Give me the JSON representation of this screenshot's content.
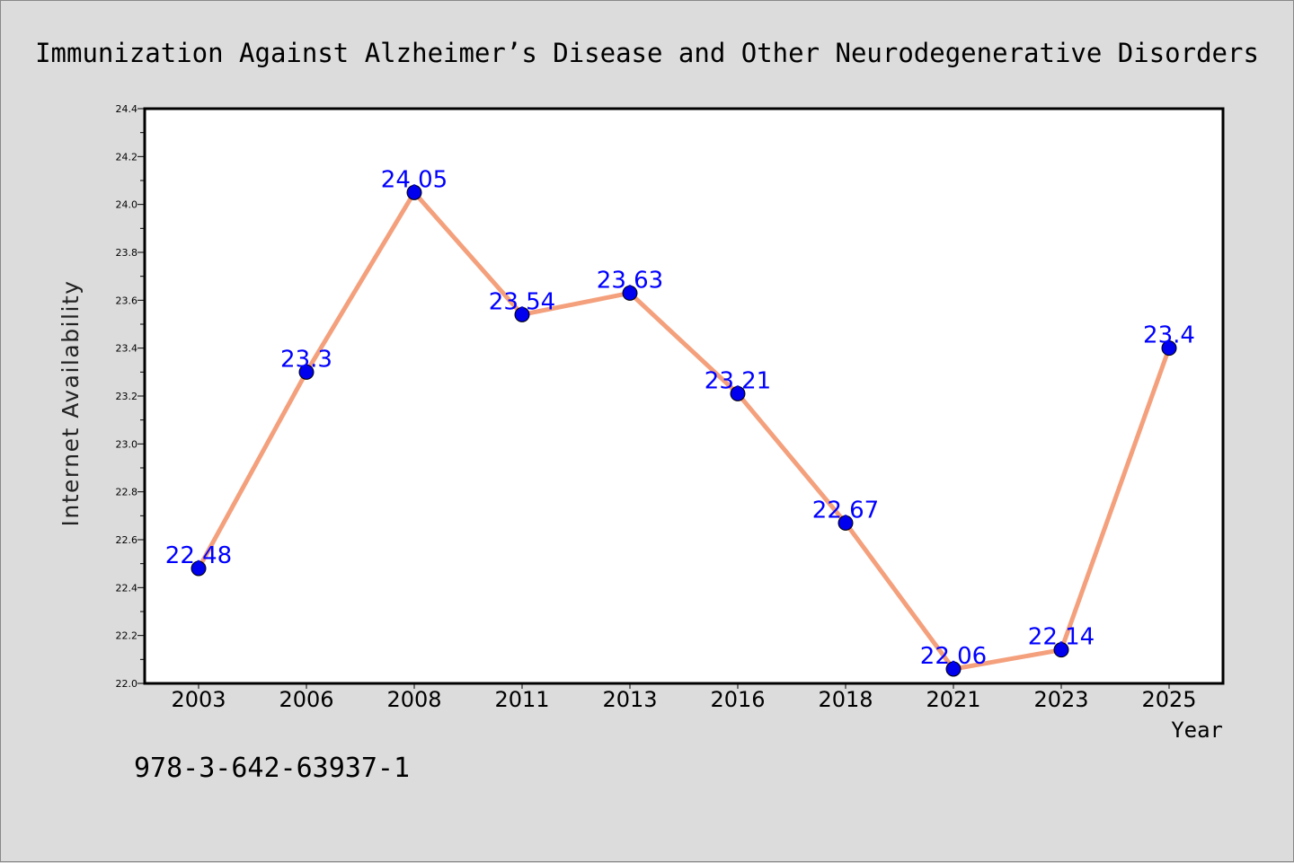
{
  "chart_data": {
    "type": "line",
    "title": "Immunization Against Alzheimer’s Disease and Other Neurodegenerative Disorders",
    "xlabel": "Year",
    "ylabel": "Internet Availability",
    "categories": [
      "2003",
      "2006",
      "2008",
      "2011",
      "2013",
      "2016",
      "2018",
      "2021",
      "2023",
      "2025"
    ],
    "values": [
      22.48,
      23.3,
      24.05,
      23.54,
      23.63,
      23.21,
      22.67,
      22.06,
      22.14,
      23.4
    ],
    "data_labels": [
      "22.48",
      "23.3",
      "24.05",
      "23.54",
      "23.63",
      "23.21",
      "22.67",
      "22.06",
      "22.14",
      "23.4"
    ],
    "ylim": [
      22.0,
      24.4
    ],
    "yticks": [
      "22.0",
      "22.2",
      "22.4",
      "22.6",
      "22.8",
      "23.0",
      "23.2",
      "23.4",
      "23.6",
      "23.8",
      "24.0",
      "24.2",
      "24.4"
    ],
    "grid": false,
    "legend": "none",
    "line_color": "#f4a07c",
    "marker_color": "#0000ee",
    "label_color": "#0000ff"
  },
  "footer": {
    "isbn": "978-3-642-63937-1"
  }
}
